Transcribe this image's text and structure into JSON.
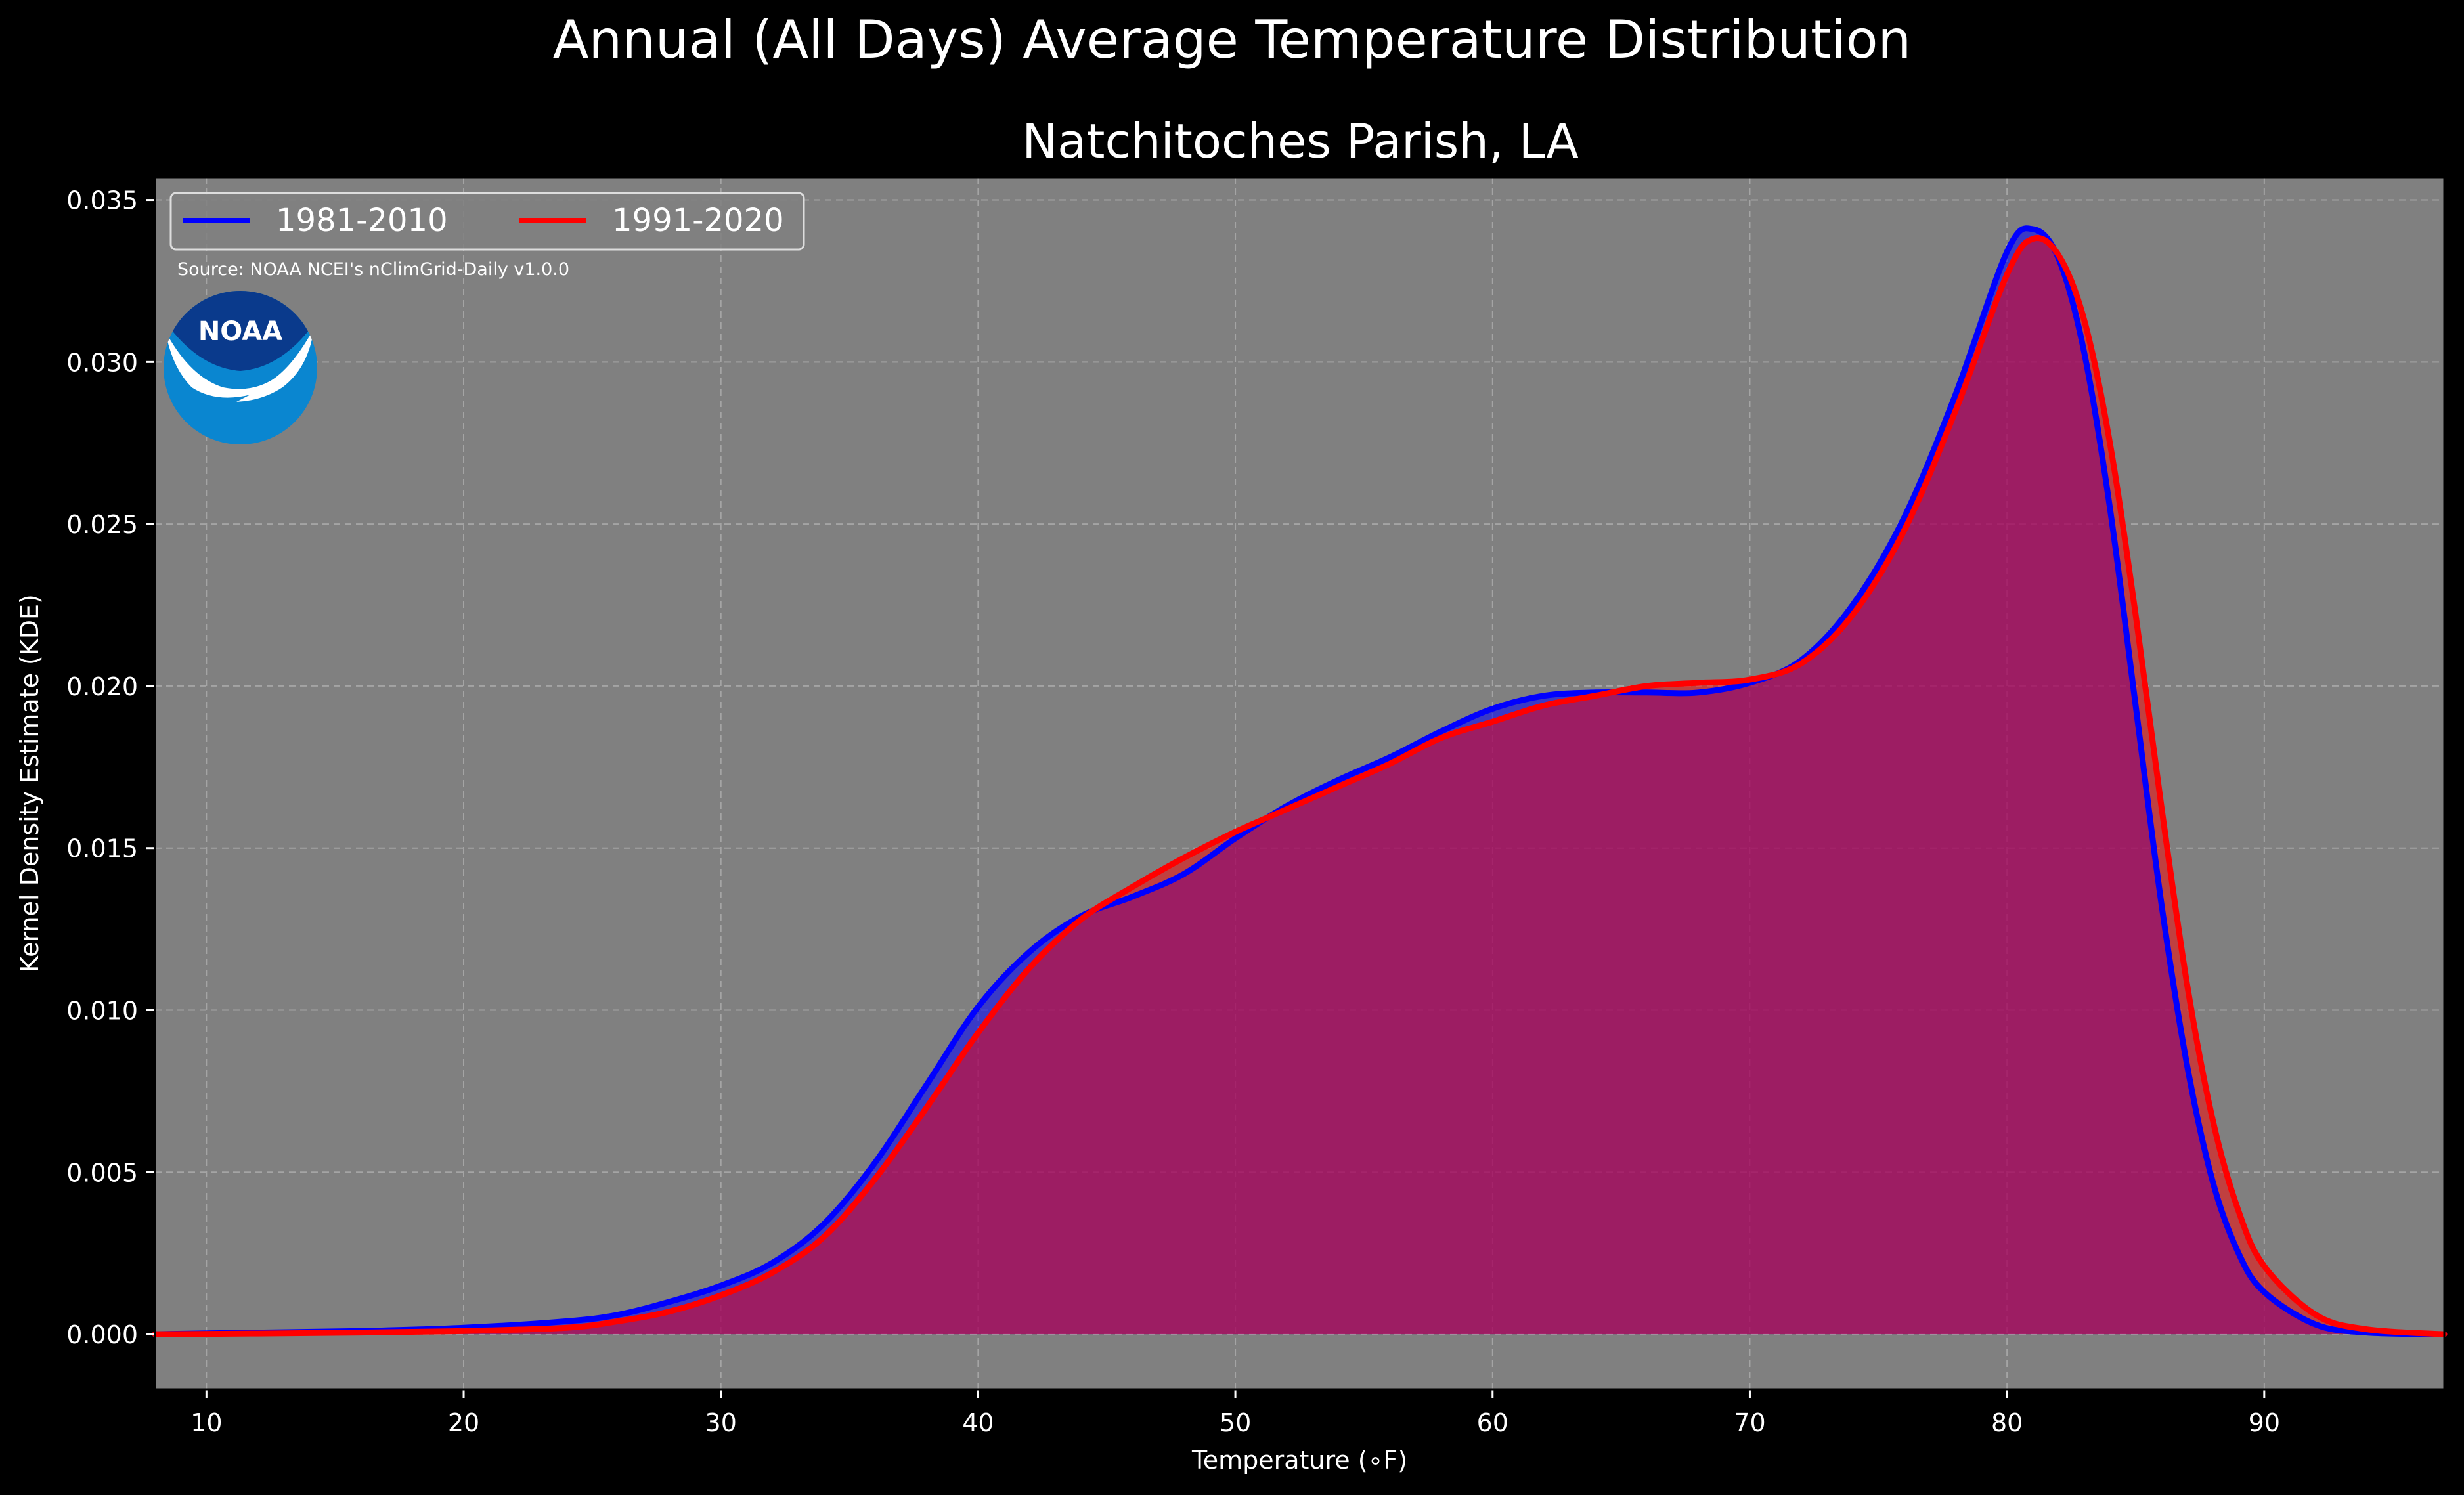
{
  "figure": {
    "suptitle": "Annual (All Days) Average Temperature Distribution"
  },
  "logo": {
    "text": "NOAA"
  },
  "source_note": "Source: NOAA NCEI's nClimGrid-Daily v1.0.0",
  "colors": {
    "background": "#000000",
    "plot_background": "#808080",
    "series_1981": "#0000ff",
    "series_1991": "#ff0000",
    "fill_overlap": "#9d1d5c",
    "grid": "#b4b4b4",
    "noaa_dark_blue": "#0a3a8c",
    "noaa_light_blue": "#0a86d0"
  },
  "chart_data": {
    "type": "area",
    "title": "Natchitoches Parish, LA",
    "xlabel": "Temperature (∘F)",
    "ylabel": "Kernel Density Estimate (KDE)",
    "xlim": [
      8,
      97
    ],
    "ylim": [
      -0.0017,
      0.0357
    ],
    "xticks": [
      10,
      20,
      30,
      40,
      50,
      60,
      70,
      80,
      90
    ],
    "yticks": [
      0.0,
      0.005,
      0.01,
      0.015,
      0.02,
      0.025,
      0.03,
      0.035
    ],
    "ytick_labels": [
      "0.000",
      "0.005",
      "0.010",
      "0.015",
      "0.020",
      "0.025",
      "0.030",
      "0.035"
    ],
    "grid": true,
    "legend_position": "top-left",
    "series": [
      {
        "name": "1981-2010",
        "color": "#0000ff",
        "points": [
          [
            8,
            0.0
          ],
          [
            12,
            5e-05
          ],
          [
            16,
            0.0001
          ],
          [
            20,
            0.0002
          ],
          [
            24,
            0.0004
          ],
          [
            26,
            0.0006
          ],
          [
            28,
            0.001
          ],
          [
            30,
            0.0015
          ],
          [
            32,
            0.0022
          ],
          [
            34,
            0.0034
          ],
          [
            36,
            0.0053
          ],
          [
            38,
            0.0077
          ],
          [
            40,
            0.0101
          ],
          [
            42,
            0.0118
          ],
          [
            44,
            0.0129
          ],
          [
            46,
            0.0135
          ],
          [
            48,
            0.0142
          ],
          [
            50,
            0.0153
          ],
          [
            52,
            0.0163
          ],
          [
            54,
            0.0171
          ],
          [
            56,
            0.0178
          ],
          [
            58,
            0.0186
          ],
          [
            60,
            0.0193
          ],
          [
            62,
            0.0197
          ],
          [
            64,
            0.0198
          ],
          [
            66,
            0.0198
          ],
          [
            68,
            0.0198
          ],
          [
            70,
            0.0201
          ],
          [
            72,
            0.0208
          ],
          [
            74,
            0.0225
          ],
          [
            76,
            0.0252
          ],
          [
            78,
            0.029
          ],
          [
            80,
            0.0334
          ],
          [
            81,
            0.0341
          ],
          [
            82,
            0.0332
          ],
          [
            83,
            0.0303
          ],
          [
            84,
            0.0255
          ],
          [
            85,
            0.0194
          ],
          [
            86,
            0.0133
          ],
          [
            87,
            0.0083
          ],
          [
            88,
            0.0047
          ],
          [
            89,
            0.0025
          ],
          [
            90,
            0.0013
          ],
          [
            92,
            0.0003
          ],
          [
            94,
            5e-05
          ],
          [
            97,
            0.0
          ]
        ]
      },
      {
        "name": "1991-2020",
        "color": "#ff0000",
        "points": [
          [
            8,
            0.0
          ],
          [
            12,
            2e-05
          ],
          [
            16,
            5e-05
          ],
          [
            20,
            0.0001
          ],
          [
            24,
            0.0002
          ],
          [
            26,
            0.0004
          ],
          [
            28,
            0.0007
          ],
          [
            30,
            0.0012
          ],
          [
            32,
            0.0019
          ],
          [
            34,
            0.003
          ],
          [
            36,
            0.0048
          ],
          [
            38,
            0.007
          ],
          [
            40,
            0.0093
          ],
          [
            42,
            0.0113
          ],
          [
            44,
            0.0128
          ],
          [
            46,
            0.0138
          ],
          [
            48,
            0.0147
          ],
          [
            50,
            0.0155
          ],
          [
            52,
            0.0162
          ],
          [
            54,
            0.0169
          ],
          [
            56,
            0.0176
          ],
          [
            58,
            0.0184
          ],
          [
            60,
            0.0189
          ],
          [
            62,
            0.0194
          ],
          [
            64,
            0.0197
          ],
          [
            66,
            0.02
          ],
          [
            68,
            0.0201
          ],
          [
            70,
            0.0202
          ],
          [
            72,
            0.0207
          ],
          [
            74,
            0.0222
          ],
          [
            76,
            0.0248
          ],
          [
            78,
            0.0285
          ],
          [
            80,
            0.0327
          ],
          [
            81,
            0.0338
          ],
          [
            82,
            0.0333
          ],
          [
            83,
            0.0313
          ],
          [
            84,
            0.0275
          ],
          [
            85,
            0.0222
          ],
          [
            86,
            0.0163
          ],
          [
            87,
            0.0108
          ],
          [
            88,
            0.0066
          ],
          [
            89,
            0.0038
          ],
          [
            90,
            0.0021
          ],
          [
            92,
            0.0006
          ],
          [
            94,
            0.00015
          ],
          [
            97,
            0.0
          ]
        ]
      }
    ]
  }
}
